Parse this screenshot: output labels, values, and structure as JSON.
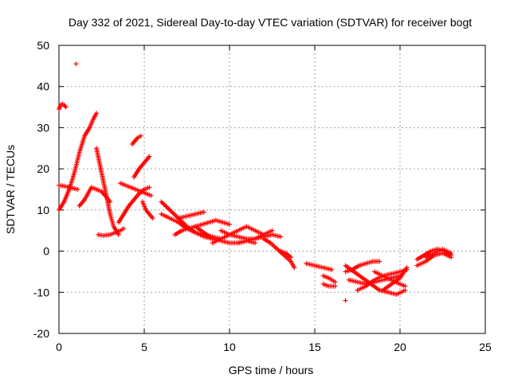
{
  "chart_data": {
    "type": "scatter",
    "title": "Day 332 of 2021, Sidereal Day-to-day VTEC variation (SDTVAR) for receiver bogt",
    "xlabel": "GPS time / hours",
    "ylabel": "SDTVAR / TECUs",
    "xlim": [
      0,
      25
    ],
    "ylim": [
      -20,
      50
    ],
    "xticks": [
      0,
      5,
      10,
      15,
      20,
      25
    ],
    "yticks": [
      -20,
      -10,
      0,
      10,
      20,
      30,
      40,
      50
    ],
    "grid": true,
    "marker": "+",
    "color": "#ff0000",
    "series": [
      {
        "name": "t0",
        "x": [
          0.0,
          0.1,
          0.2,
          0.3,
          0.4
        ],
        "y": [
          34.5,
          35.5,
          35.8,
          35.5,
          35.0
        ]
      },
      {
        "name": "t1",
        "x": [
          1.0
        ],
        "y": [
          45.5
        ]
      },
      {
        "name": "t2",
        "x": [
          0.0,
          0.3,
          0.6,
          0.9,
          1.2,
          1.5,
          1.8,
          2.0,
          2.2
        ],
        "y": [
          10.0,
          12.0,
          15.0,
          19.0,
          24.0,
          28.0,
          30.0,
          32.0,
          33.5
        ]
      },
      {
        "name": "t3",
        "x": [
          0.0,
          0.3,
          0.6,
          0.9,
          1.1
        ],
        "y": [
          16.0,
          15.8,
          15.5,
          15.2,
          15.0
        ]
      },
      {
        "name": "t4",
        "x": [
          1.2,
          1.5,
          1.7,
          1.9,
          2.2,
          2.5,
          2.8,
          3.0
        ],
        "y": [
          11.0,
          12.5,
          14.0,
          15.5,
          15.0,
          14.5,
          13.0,
          12.0
        ]
      },
      {
        "name": "t5",
        "x": [
          2.2,
          2.4,
          2.6,
          2.8,
          3.0,
          3.2,
          3.5
        ],
        "y": [
          25.0,
          21.0,
          17.0,
          13.0,
          9.0,
          6.0,
          4.0
        ]
      },
      {
        "name": "t6",
        "x": [
          2.3,
          2.6,
          3.0,
          3.3,
          3.6,
          3.8
        ],
        "y": [
          4.0,
          3.8,
          4.0,
          4.5,
          5.0,
          5.5
        ]
      },
      {
        "name": "t7",
        "x": [
          3.5,
          3.8,
          4.1,
          4.4,
          4.7,
          5.0,
          5.3
        ],
        "y": [
          7.0,
          9.0,
          11.0,
          12.5,
          14.0,
          15.0,
          15.5
        ]
      },
      {
        "name": "t8",
        "x": [
          3.6,
          3.9,
          4.2,
          4.5,
          4.8,
          5.1,
          5.4
        ],
        "y": [
          16.5,
          16.0,
          15.5,
          15.0,
          14.5,
          14.0,
          13.5
        ]
      },
      {
        "name": "t9",
        "x": [
          4.3,
          4.6,
          4.8
        ],
        "y": [
          26.0,
          27.5,
          28.0
        ]
      },
      {
        "name": "t10",
        "x": [
          4.4,
          4.7,
          5.0,
          5.3
        ],
        "y": [
          18.0,
          20.0,
          21.5,
          23.0
        ]
      },
      {
        "name": "t11",
        "x": [
          4.9,
          5.1,
          5.3,
          5.5
        ],
        "y": [
          12.0,
          10.0,
          9.0,
          8.0
        ]
      },
      {
        "name": "t12",
        "x": [
          6.0,
          6.5,
          7.0,
          7.5,
          8.0,
          8.5,
          9.0
        ],
        "y": [
          12.0,
          10.0,
          8.0,
          6.0,
          4.5,
          3.5,
          3.0
        ]
      },
      {
        "name": "t13",
        "x": [
          6.0,
          6.5,
          7.0,
          7.5,
          8.0,
          8.5,
          9.0,
          9.5
        ],
        "y": [
          9.0,
          8.0,
          7.0,
          5.5,
          4.5,
          4.0,
          3.5,
          3.0
        ]
      },
      {
        "name": "t14",
        "x": [
          6.8,
          7.2,
          7.6,
          8.0,
          8.4,
          8.8,
          9.2,
          9.6,
          10.0
        ],
        "y": [
          4.0,
          5.0,
          5.5,
          6.0,
          6.5,
          7.0,
          7.5,
          7.0,
          6.5
        ]
      },
      {
        "name": "t15",
        "x": [
          7.0,
          7.5,
          8.0,
          8.5
        ],
        "y": [
          8.0,
          8.5,
          9.0,
          9.5
        ]
      },
      {
        "name": "t16",
        "x": [
          8.0,
          8.5,
          9.0,
          9.5,
          10.0,
          10.5,
          11.0,
          11.5
        ],
        "y": [
          6.0,
          4.5,
          3.0,
          2.5,
          2.0,
          2.0,
          2.5,
          2.0
        ]
      },
      {
        "name": "t17",
        "x": [
          9.0,
          9.5,
          10.0,
          10.5,
          11.0,
          11.5,
          12.0
        ],
        "y": [
          2.0,
          3.0,
          4.0,
          5.0,
          6.0,
          5.0,
          4.0
        ]
      },
      {
        "name": "t18",
        "x": [
          9.5,
          10.0,
          10.5,
          11.0,
          11.5,
          12.0,
          12.5,
          13.0
        ],
        "y": [
          5.0,
          4.0,
          3.5,
          3.0,
          3.0,
          3.5,
          4.0,
          3.5
        ]
      },
      {
        "name": "t19",
        "x": [
          10.5,
          11.0,
          11.5,
          12.0,
          12.5
        ],
        "y": [
          2.0,
          2.5,
          3.0,
          4.0,
          5.0
        ]
      },
      {
        "name": "t20",
        "x": [
          12.0,
          12.4,
          12.8,
          13.2,
          13.6,
          13.8
        ],
        "y": [
          3.0,
          2.0,
          0.5,
          -1.0,
          -2.5,
          -4.0
        ]
      },
      {
        "name": "t21",
        "x": [
          13.0,
          13.3,
          13.6
        ],
        "y": [
          0.0,
          -0.5,
          -1.5
        ]
      },
      {
        "name": "t22",
        "x": [
          14.5,
          15.0,
          15.5,
          16.0
        ],
        "y": [
          -3.0,
          -3.5,
          -4.0,
          -4.5
        ]
      },
      {
        "name": "t23",
        "x": [
          15.5,
          15.8,
          16.0,
          16.2
        ],
        "y": [
          -6.0,
          -6.5,
          -7.0,
          -7.5
        ]
      },
      {
        "name": "t24",
        "x": [
          15.5,
          15.8,
          16.0,
          16.2
        ],
        "y": [
          -8.0,
          -8.5,
          -8.5,
          -8.5
        ]
      },
      {
        "name": "t25",
        "x": [
          16.8
        ],
        "y": [
          -12.0
        ]
      },
      {
        "name": "t26",
        "x": [
          16.8,
          17.2,
          17.6,
          18.0,
          18.4,
          18.8
        ],
        "y": [
          -5.0,
          -4.5,
          -3.5,
          -3.0,
          -2.5,
          -2.5
        ]
      },
      {
        "name": "t27",
        "x": [
          16.8,
          17.3,
          17.8,
          18.3,
          18.8,
          19.3,
          19.8,
          20.3
        ],
        "y": [
          -3.5,
          -5.0,
          -6.5,
          -8.0,
          -9.5,
          -10.0,
          -10.5,
          -9.5
        ]
      },
      {
        "name": "t28",
        "x": [
          17.0,
          17.5,
          18.0,
          18.5,
          19.0,
          19.5,
          20.0
        ],
        "y": [
          -7.0,
          -7.5,
          -8.0,
          -7.5,
          -7.0,
          -6.5,
          -6.0
        ]
      },
      {
        "name": "t29",
        "x": [
          17.5,
          18.0,
          18.5,
          19.0,
          19.5,
          20.0,
          20.4
        ],
        "y": [
          -9.5,
          -8.5,
          -7.0,
          -6.0,
          -5.5,
          -5.0,
          -4.5
        ]
      },
      {
        "name": "t30",
        "x": [
          18.5,
          19.0,
          19.5,
          20.0,
          20.3
        ],
        "y": [
          -5.0,
          -6.0,
          -7.0,
          -8.0,
          -8.5
        ]
      },
      {
        "name": "t31",
        "x": [
          19.0,
          19.5,
          20.0,
          20.4
        ],
        "y": [
          -9.5,
          -8.0,
          -6.5,
          -4.0
        ]
      },
      {
        "name": "t32",
        "x": [
          21.0,
          21.4,
          21.8,
          22.2,
          22.6,
          23.0
        ],
        "y": [
          -2.0,
          -1.0,
          0.0,
          0.5,
          0.0,
          -1.0
        ]
      },
      {
        "name": "t33",
        "x": [
          21.0,
          21.5,
          22.0,
          22.5,
          23.0
        ],
        "y": [
          -3.5,
          -2.5,
          -1.0,
          -0.5,
          -1.5
        ]
      },
      {
        "name": "t34",
        "x": [
          21.5,
          22.0,
          22.5,
          23.0
        ],
        "y": [
          -1.5,
          -0.5,
          0.5,
          -0.5
        ]
      }
    ]
  }
}
